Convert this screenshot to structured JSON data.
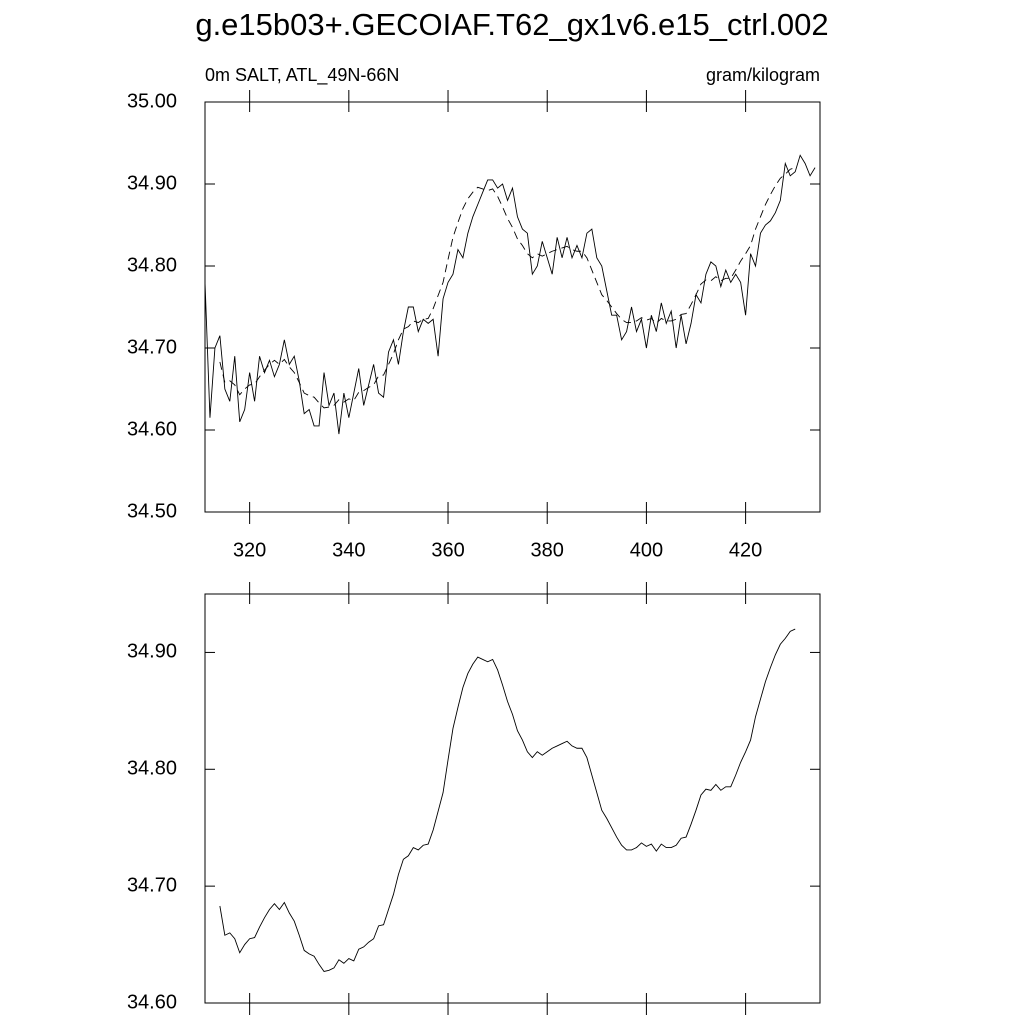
{
  "chart_data": [
    {
      "type": "line",
      "title": "g.e15b03+.GECOIAF.T62_gx1v6.e15_ctrl.002",
      "subtitle_left": "0m SALT, ATL_49N-66N",
      "subtitle_right": "gram/kilogram",
      "xlim": [
        311,
        435
      ],
      "xticks": [
        320,
        340,
        360,
        380,
        400,
        420
      ],
      "ylim": [
        34.5,
        35.0
      ],
      "yticks": [
        {
          "value": 34.5,
          "label": "34.50"
        },
        {
          "value": 34.6,
          "label": "34.60"
        },
        {
          "value": 34.7,
          "label": "34.70"
        },
        {
          "value": 34.8,
          "label": "34.80"
        },
        {
          "value": 34.9,
          "label": "34.90"
        },
        {
          "value": 35.0,
          "label": "35.00"
        }
      ],
      "series": [
        {
          "color": "#000000",
          "line_style": "solid",
          "x": [
            311,
            312,
            313,
            314,
            315,
            316,
            317,
            318,
            319,
            320,
            321,
            322,
            323,
            324,
            325,
            326,
            327,
            328,
            329,
            330,
            331,
            332,
            333,
            334,
            335,
            336,
            337,
            338,
            339,
            340,
            341,
            342,
            343,
            344,
            345,
            346,
            347,
            348,
            349,
            350,
            351,
            352,
            353,
            354,
            355,
            356,
            357,
            358,
            359,
            360,
            361,
            362,
            363,
            364,
            365,
            366,
            367,
            368,
            369,
            370,
            371,
            372,
            373,
            374,
            375,
            376,
            377,
            378,
            379,
            380,
            381,
            382,
            383,
            384,
            385,
            386,
            387,
            388,
            389,
            390,
            391,
            392,
            393,
            394,
            395,
            396,
            397,
            398,
            399,
            400,
            401,
            402,
            403,
            404,
            405,
            406,
            407,
            408,
            409,
            410,
            411,
            412,
            413,
            414,
            415,
            416,
            417,
            418,
            419,
            420,
            421,
            422,
            423,
            424,
            425,
            426,
            427,
            428,
            429,
            430,
            431,
            432,
            433,
            434
          ],
          "values": [
            34.78,
            34.615,
            34.7,
            34.715,
            34.65,
            34.635,
            34.69,
            34.61,
            34.625,
            34.67,
            34.635,
            34.69,
            34.67,
            34.685,
            34.665,
            34.68,
            34.71,
            34.68,
            34.69,
            34.66,
            34.62,
            34.625,
            34.605,
            34.605,
            34.67,
            34.63,
            34.645,
            34.595,
            34.645,
            34.615,
            34.645,
            34.675,
            34.63,
            34.655,
            34.68,
            34.645,
            34.64,
            34.695,
            34.71,
            34.68,
            34.72,
            34.75,
            34.75,
            34.72,
            34.735,
            34.73,
            34.735,
            34.69,
            34.76,
            34.78,
            34.79,
            34.82,
            34.81,
            34.84,
            34.86,
            34.875,
            34.89,
            34.905,
            34.905,
            34.895,
            34.9,
            34.88,
            34.895,
            34.86,
            34.845,
            34.84,
            34.79,
            34.8,
            34.83,
            34.81,
            34.79,
            34.835,
            34.81,
            34.835,
            34.81,
            34.825,
            34.81,
            34.84,
            34.845,
            34.81,
            34.8,
            34.77,
            34.74,
            34.74,
            34.71,
            34.72,
            34.75,
            34.72,
            34.735,
            34.7,
            34.74,
            34.72,
            34.755,
            34.73,
            34.745,
            34.7,
            34.74,
            34.705,
            34.73,
            34.765,
            34.755,
            34.79,
            34.805,
            34.8,
            34.775,
            34.795,
            34.78,
            34.79,
            34.78,
            34.74,
            34.815,
            34.8,
            34.84,
            34.85,
            34.855,
            34.865,
            34.88,
            34.925,
            34.91,
            34.915,
            34.935,
            34.925,
            34.91,
            34.92
          ]
        },
        {
          "color": "#000000",
          "line_style": "dashed",
          "x": [
            314,
            315,
            316,
            317,
            318,
            319,
            320,
            321,
            322,
            323,
            324,
            325,
            326,
            327,
            328,
            329,
            330,
            331,
            332,
            333,
            334,
            335,
            336,
            337,
            338,
            339,
            340,
            341,
            342,
            343,
            344,
            345,
            346,
            347,
            348,
            349,
            350,
            351,
            352,
            353,
            354,
            355,
            356,
            357,
            358,
            359,
            360,
            361,
            362,
            363,
            364,
            365,
            366,
            367,
            368,
            369,
            370,
            371,
            372,
            373,
            374,
            375,
            376,
            377,
            378,
            379,
            380,
            381,
            382,
            383,
            384,
            385,
            386,
            387,
            388,
            389,
            390,
            391,
            392,
            393,
            394,
            395,
            396,
            397,
            398,
            399,
            400,
            401,
            402,
            403,
            404,
            405,
            406,
            407,
            408,
            409,
            410,
            411,
            412,
            413,
            414,
            415,
            416,
            417,
            418,
            419,
            420,
            421,
            422,
            423,
            424,
            425,
            426,
            427,
            428,
            429,
            430
          ],
          "values": [
            34.683,
            34.658,
            34.66,
            34.655,
            34.643,
            34.65,
            34.655,
            34.656,
            34.665,
            34.673,
            34.68,
            34.685,
            34.68,
            34.686,
            34.677,
            34.67,
            34.658,
            34.645,
            34.642,
            34.64,
            34.633,
            34.627,
            34.628,
            34.63,
            34.637,
            34.634,
            34.638,
            34.636,
            34.646,
            34.648,
            34.652,
            34.655,
            34.666,
            34.667,
            34.68,
            34.693,
            34.71,
            34.723,
            34.726,
            34.733,
            34.731,
            34.735,
            34.736,
            34.748,
            34.764,
            34.78,
            34.808,
            34.835,
            34.853,
            34.87,
            34.882,
            34.89,
            34.896,
            34.894,
            34.892,
            34.894,
            34.885,
            34.872,
            34.858,
            34.847,
            34.833,
            34.825,
            34.815,
            34.81,
            34.815,
            34.812,
            34.815,
            34.818,
            34.82,
            34.822,
            34.824,
            34.82,
            34.818,
            34.818,
            34.81,
            34.795,
            34.78,
            34.765,
            34.758,
            34.75,
            34.742,
            34.735,
            34.731,
            34.731,
            34.733,
            34.737,
            34.734,
            34.736,
            34.73,
            34.736,
            34.733,
            34.733,
            34.735,
            34.741,
            34.742,
            34.753,
            34.765,
            34.778,
            34.783,
            34.782,
            34.787,
            34.782,
            34.785,
            34.785,
            34.795,
            34.806,
            34.815,
            34.825,
            34.845,
            34.86,
            34.875,
            34.887,
            34.898,
            34.907,
            34.912,
            34.918,
            34.92
          ]
        }
      ]
    },
    {
      "type": "line",
      "xlim": [
        311,
        435
      ],
      "xticks": [
        320,
        340,
        360,
        380,
        400,
        420
      ],
      "ylim": [
        34.6,
        34.95
      ],
      "yticks": [
        {
          "value": 34.6,
          "label": "34.60"
        },
        {
          "value": 34.7,
          "label": "34.70"
        },
        {
          "value": 34.8,
          "label": "34.80"
        },
        {
          "value": 34.9,
          "label": "34.90"
        }
      ],
      "series": [
        {
          "color": "#000000",
          "line_style": "solid",
          "x": [
            314,
            315,
            316,
            317,
            318,
            319,
            320,
            321,
            322,
            323,
            324,
            325,
            326,
            327,
            328,
            329,
            330,
            331,
            332,
            333,
            334,
            335,
            336,
            337,
            338,
            339,
            340,
            341,
            342,
            343,
            344,
            345,
            346,
            347,
            348,
            349,
            350,
            351,
            352,
            353,
            354,
            355,
            356,
            357,
            358,
            359,
            360,
            361,
            362,
            363,
            364,
            365,
            366,
            367,
            368,
            369,
            370,
            371,
            372,
            373,
            374,
            375,
            376,
            377,
            378,
            379,
            380,
            381,
            382,
            383,
            384,
            385,
            386,
            387,
            388,
            389,
            390,
            391,
            392,
            393,
            394,
            395,
            396,
            397,
            398,
            399,
            400,
            401,
            402,
            403,
            404,
            405,
            406,
            407,
            408,
            409,
            410,
            411,
            412,
            413,
            414,
            415,
            416,
            417,
            418,
            419,
            420,
            421,
            422,
            423,
            424,
            425,
            426,
            427,
            428,
            429,
            430
          ],
          "values": [
            34.683,
            34.658,
            34.66,
            34.655,
            34.643,
            34.65,
            34.655,
            34.656,
            34.665,
            34.673,
            34.68,
            34.685,
            34.68,
            34.686,
            34.677,
            34.67,
            34.658,
            34.645,
            34.642,
            34.64,
            34.633,
            34.627,
            34.628,
            34.63,
            34.637,
            34.634,
            34.638,
            34.636,
            34.646,
            34.648,
            34.652,
            34.655,
            34.666,
            34.667,
            34.68,
            34.693,
            34.71,
            34.723,
            34.726,
            34.733,
            34.731,
            34.735,
            34.736,
            34.748,
            34.764,
            34.78,
            34.808,
            34.835,
            34.853,
            34.87,
            34.882,
            34.89,
            34.896,
            34.894,
            34.892,
            34.894,
            34.885,
            34.872,
            34.858,
            34.847,
            34.833,
            34.825,
            34.815,
            34.81,
            34.815,
            34.812,
            34.815,
            34.818,
            34.82,
            34.822,
            34.824,
            34.82,
            34.818,
            34.818,
            34.81,
            34.795,
            34.78,
            34.765,
            34.758,
            34.75,
            34.742,
            34.735,
            34.731,
            34.731,
            34.733,
            34.737,
            34.734,
            34.736,
            34.73,
            34.736,
            34.733,
            34.733,
            34.735,
            34.741,
            34.742,
            34.753,
            34.765,
            34.778,
            34.783,
            34.782,
            34.787,
            34.782,
            34.785,
            34.785,
            34.795,
            34.806,
            34.815,
            34.825,
            34.845,
            34.86,
            34.875,
            34.887,
            34.898,
            34.907,
            34.912,
            34.918,
            34.92
          ]
        }
      ]
    }
  ]
}
